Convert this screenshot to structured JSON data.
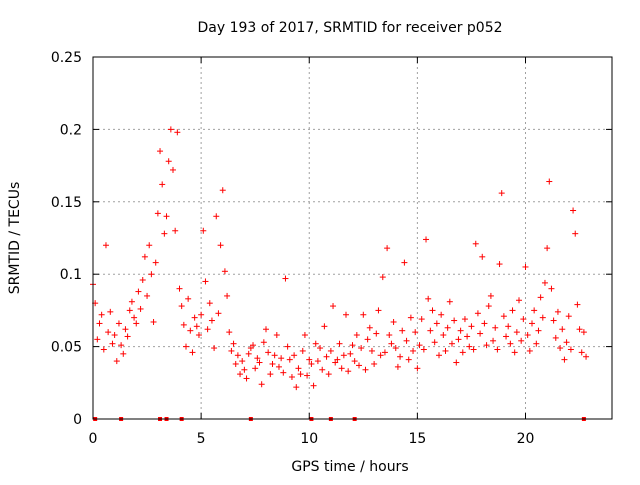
{
  "chart_data": {
    "type": "scatter",
    "title": "Day 193 of 2017, SRMTID for receiver p052",
    "xlabel": "GPS time / hours",
    "ylabel": "SRMTID / TECUs",
    "xlim": [
      0,
      24
    ],
    "ylim": [
      0,
      0.25
    ],
    "xticks": [
      0,
      5,
      10,
      15,
      20
    ],
    "xtick_labels": [
      "0",
      "5",
      "10",
      "15",
      "20"
    ],
    "yticks": [
      0,
      0.05,
      0.1,
      0.15,
      0.2,
      0.25
    ],
    "ytick_labels": [
      "0",
      "0.05",
      "0.1",
      "0.15",
      "0.2",
      "0.25"
    ],
    "grid": true,
    "marker": "plus",
    "color": "#ff0000",
    "series": [
      {
        "name": "SRMTID",
        "x": [
          0.0,
          0.1,
          0.2,
          0.3,
          0.4,
          0.5,
          0.6,
          0.7,
          0.8,
          0.9,
          1.0,
          1.1,
          1.2,
          1.3,
          1.4,
          1.5,
          1.6,
          1.7,
          1.8,
          1.9,
          2.0,
          2.1,
          2.2,
          2.3,
          2.4,
          2.5,
          2.6,
          2.7,
          2.8,
          2.9,
          3.0,
          3.1,
          3.2,
          3.3,
          3.4,
          3.5,
          3.6,
          3.7,
          3.8,
          3.9,
          4.0,
          4.1,
          4.2,
          4.3,
          4.4,
          4.5,
          4.6,
          4.7,
          4.8,
          4.9,
          5.0,
          5.1,
          5.2,
          5.3,
          5.4,
          5.5,
          5.6,
          5.7,
          5.8,
          5.9,
          6.0,
          6.1,
          6.2,
          6.3,
          6.4,
          6.5,
          6.6,
          6.7,
          6.8,
          6.9,
          7.0,
          7.1,
          7.2,
          7.3,
          7.4,
          7.5,
          7.6,
          7.7,
          7.8,
          7.9,
          8.0,
          8.1,
          8.2,
          8.3,
          8.4,
          8.5,
          8.6,
          8.7,
          8.8,
          8.9,
          9.0,
          9.1,
          9.2,
          9.3,
          9.4,
          9.5,
          9.6,
          9.7,
          9.8,
          9.9,
          10.0,
          10.1,
          10.2,
          10.3,
          10.4,
          10.5,
          10.6,
          10.7,
          10.8,
          10.9,
          11.0,
          11.1,
          11.2,
          11.3,
          11.4,
          11.5,
          11.6,
          11.7,
          11.8,
          11.9,
          12.0,
          12.1,
          12.2,
          12.3,
          12.4,
          12.5,
          12.6,
          12.7,
          12.8,
          12.9,
          13.0,
          13.1,
          13.2,
          13.3,
          13.4,
          13.5,
          13.6,
          13.7,
          13.8,
          13.9,
          14.0,
          14.1,
          14.2,
          14.3,
          14.4,
          14.5,
          14.6,
          14.7,
          14.8,
          14.9,
          15.0,
          15.1,
          15.2,
          15.3,
          15.4,
          15.5,
          15.6,
          15.7,
          15.8,
          15.9,
          16.0,
          16.1,
          16.2,
          16.3,
          16.4,
          16.5,
          16.6,
          16.7,
          16.8,
          16.9,
          17.0,
          17.1,
          17.2,
          17.3,
          17.4,
          17.5,
          17.6,
          17.7,
          17.8,
          17.9,
          18.0,
          18.1,
          18.2,
          18.3,
          18.4,
          18.5,
          18.6,
          18.7,
          18.8,
          18.9,
          19.0,
          19.1,
          19.2,
          19.3,
          19.4,
          19.5,
          19.6,
          19.7,
          19.8,
          19.9,
          20.0,
          20.1,
          20.2,
          20.3,
          20.4,
          20.5,
          20.6,
          20.7,
          20.8,
          20.9,
          21.0,
          21.1,
          21.2,
          21.3,
          21.4,
          21.5,
          21.6,
          21.7,
          21.8,
          21.9,
          22.0,
          22.1,
          22.2,
          22.3,
          22.4,
          22.5,
          22.6,
          22.7,
          22.8
        ],
        "y": [
          0.093,
          0.08,
          0.055,
          0.066,
          0.072,
          0.048,
          0.12,
          0.06,
          0.074,
          0.052,
          0.058,
          0.04,
          0.066,
          0.051,
          0.045,
          0.062,
          0.057,
          0.075,
          0.081,
          0.07,
          0.066,
          0.088,
          0.076,
          0.096,
          0.112,
          0.085,
          0.12,
          0.1,
          0.067,
          0.108,
          0.142,
          0.185,
          0.162,
          0.128,
          0.14,
          0.178,
          0.2,
          0.172,
          0.13,
          0.198,
          0.09,
          0.078,
          0.065,
          0.05,
          0.083,
          0.061,
          0.046,
          0.07,
          0.064,
          0.058,
          0.072,
          0.13,
          0.095,
          0.062,
          0.08,
          0.068,
          0.049,
          0.14,
          0.073,
          0.12,
          0.158,
          0.102,
          0.085,
          0.06,
          0.047,
          0.052,
          0.038,
          0.044,
          0.031,
          0.04,
          0.034,
          0.028,
          0.045,
          0.049,
          0.051,
          0.035,
          0.042,
          0.039,
          0.024,
          0.053,
          0.062,
          0.046,
          0.031,
          0.038,
          0.044,
          0.058,
          0.036,
          0.042,
          0.032,
          0.097,
          0.05,
          0.041,
          0.029,
          0.044,
          0.022,
          0.035,
          0.031,
          0.047,
          0.058,
          0.03,
          0.041,
          0.038,
          0.023,
          0.052,
          0.04,
          0.049,
          0.034,
          0.064,
          0.043,
          0.031,
          0.047,
          0.078,
          0.039,
          0.041,
          0.052,
          0.035,
          0.044,
          0.072,
          0.033,
          0.045,
          0.051,
          0.04,
          0.058,
          0.037,
          0.049,
          0.072,
          0.034,
          0.055,
          0.063,
          0.047,
          0.038,
          0.059,
          0.075,
          0.044,
          0.098,
          0.046,
          0.118,
          0.058,
          0.052,
          0.067,
          0.049,
          0.036,
          0.043,
          0.061,
          0.108,
          0.054,
          0.041,
          0.07,
          0.047,
          0.06,
          0.035,
          0.051,
          0.069,
          0.048,
          0.124,
          0.083,
          0.061,
          0.075,
          0.053,
          0.066,
          0.044,
          0.072,
          0.058,
          0.047,
          0.063,
          0.081,
          0.052,
          0.068,
          0.039,
          0.055,
          0.061,
          0.046,
          0.069,
          0.057,
          0.05,
          0.064,
          0.048,
          0.121,
          0.073,
          0.059,
          0.112,
          0.066,
          0.051,
          0.078,
          0.085,
          0.054,
          0.063,
          0.048,
          0.107,
          0.156,
          0.071,
          0.057,
          0.064,
          0.052,
          0.075,
          0.046,
          0.06,
          0.082,
          0.054,
          0.069,
          0.105,
          0.058,
          0.047,
          0.066,
          0.075,
          0.052,
          0.061,
          0.084,
          0.07,
          0.094,
          0.118,
          0.164,
          0.09,
          0.068,
          0.056,
          0.074,
          0.049,
          0.062,
          0.041,
          0.053,
          0.071,
          0.048,
          0.144,
          0.128,
          0.079,
          0.062,
          0.046,
          0.06,
          0.043
        ]
      }
    ],
    "gap_markers_x": [
      0.1,
      1.3,
      3.1,
      3.4,
      4.1,
      7.3,
      10.1,
      11.0,
      12.1,
      22.7
    ]
  }
}
